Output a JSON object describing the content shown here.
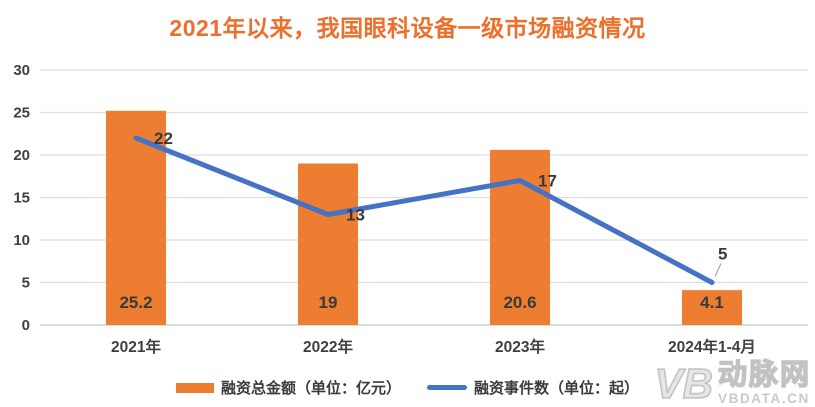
{
  "title": "2021年以来，我国眼科设备一级市场融资情况",
  "chart_data": {
    "type": "bar+line",
    "title": "2021年以来，我国眼科设备一级市场融资情况",
    "categories": [
      "2021年",
      "2022年",
      "2023年",
      "2024年1-4月"
    ],
    "series": [
      {
        "name": "融资总金额（单位：亿元）",
        "type": "bar",
        "values": [
          25.2,
          19,
          20.6,
          4.1
        ],
        "color": "#ED7D31"
      },
      {
        "name": "融资事件数（单位：起）",
        "type": "line",
        "values": [
          22,
          13,
          17,
          5
        ],
        "color": "#4472C4"
      }
    ],
    "xlabel": "",
    "ylabel": "",
    "ylim": [
      0,
      30
    ],
    "yticks": [
      0,
      5,
      10,
      15,
      20,
      25,
      30
    ],
    "grid": true,
    "legend_position": "bottom",
    "line_label_placements": [
      "right",
      "right",
      "right",
      "above-callout"
    ]
  },
  "watermark": {
    "logo": "VB",
    "name": "动脉网",
    "url": "VBDATA.CN"
  },
  "colors": {
    "title": "#EC6F2C",
    "bar": "#ED7D31",
    "line": "#4472C4",
    "grid": "#DEDEDE",
    "zero_line": "#C6C6C6",
    "callout_line": "#A6A6A6",
    "axis_text": "#404040",
    "label_text": "#3A3A3A",
    "watermark": "#C6C6C6"
  }
}
